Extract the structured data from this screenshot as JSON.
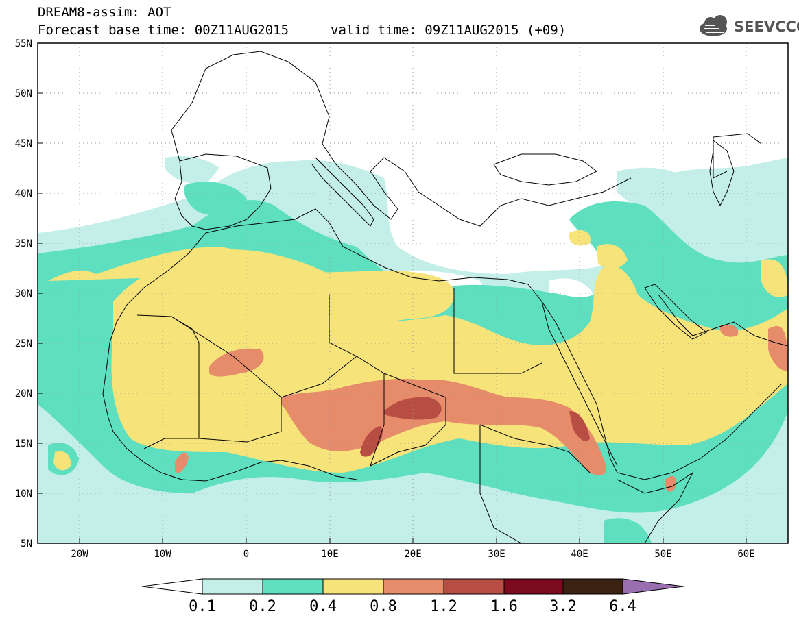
{
  "header": {
    "title": "DREAM8-assim: AOT",
    "base_time": "Forecast base time: 00Z11AUG2015",
    "valid_time": "valid time: 09Z11AUG2015 (+09)"
  },
  "logo": {
    "text": "SEEVCCC",
    "icon": "cloud-icon"
  },
  "map": {
    "lat_labels": [
      "55N",
      "50N",
      "45N",
      "40N",
      "35N",
      "30N",
      "25N",
      "20N",
      "15N",
      "10N",
      "5N"
    ],
    "lon_labels": [
      "20W",
      "10W",
      "0",
      "10E",
      "20E",
      "30E",
      "40E",
      "50E",
      "60E"
    ],
    "lat_range": [
      5,
      55
    ],
    "lon_range": [
      -25,
      65
    ],
    "grid": "dotted"
  },
  "colorbar": {
    "levels": [
      "0.1",
      "0.2",
      "0.4",
      "0.8",
      "1.2",
      "1.6",
      "3.2",
      "6.4"
    ],
    "colors": [
      "#ffffff",
      "#c4efe9",
      "#5ddfc0",
      "#f6e37a",
      "#e68c6b",
      "#b84e43",
      "#7b0a1e",
      "#3b2213",
      "#9a6fb0"
    ]
  },
  "colors": {
    "lvl1": "#c4efe9",
    "lvl2": "#5ddfc0",
    "lvl3": "#f6e37a",
    "lvl4": "#e68c6b",
    "lvl5": "#b84e43"
  }
}
